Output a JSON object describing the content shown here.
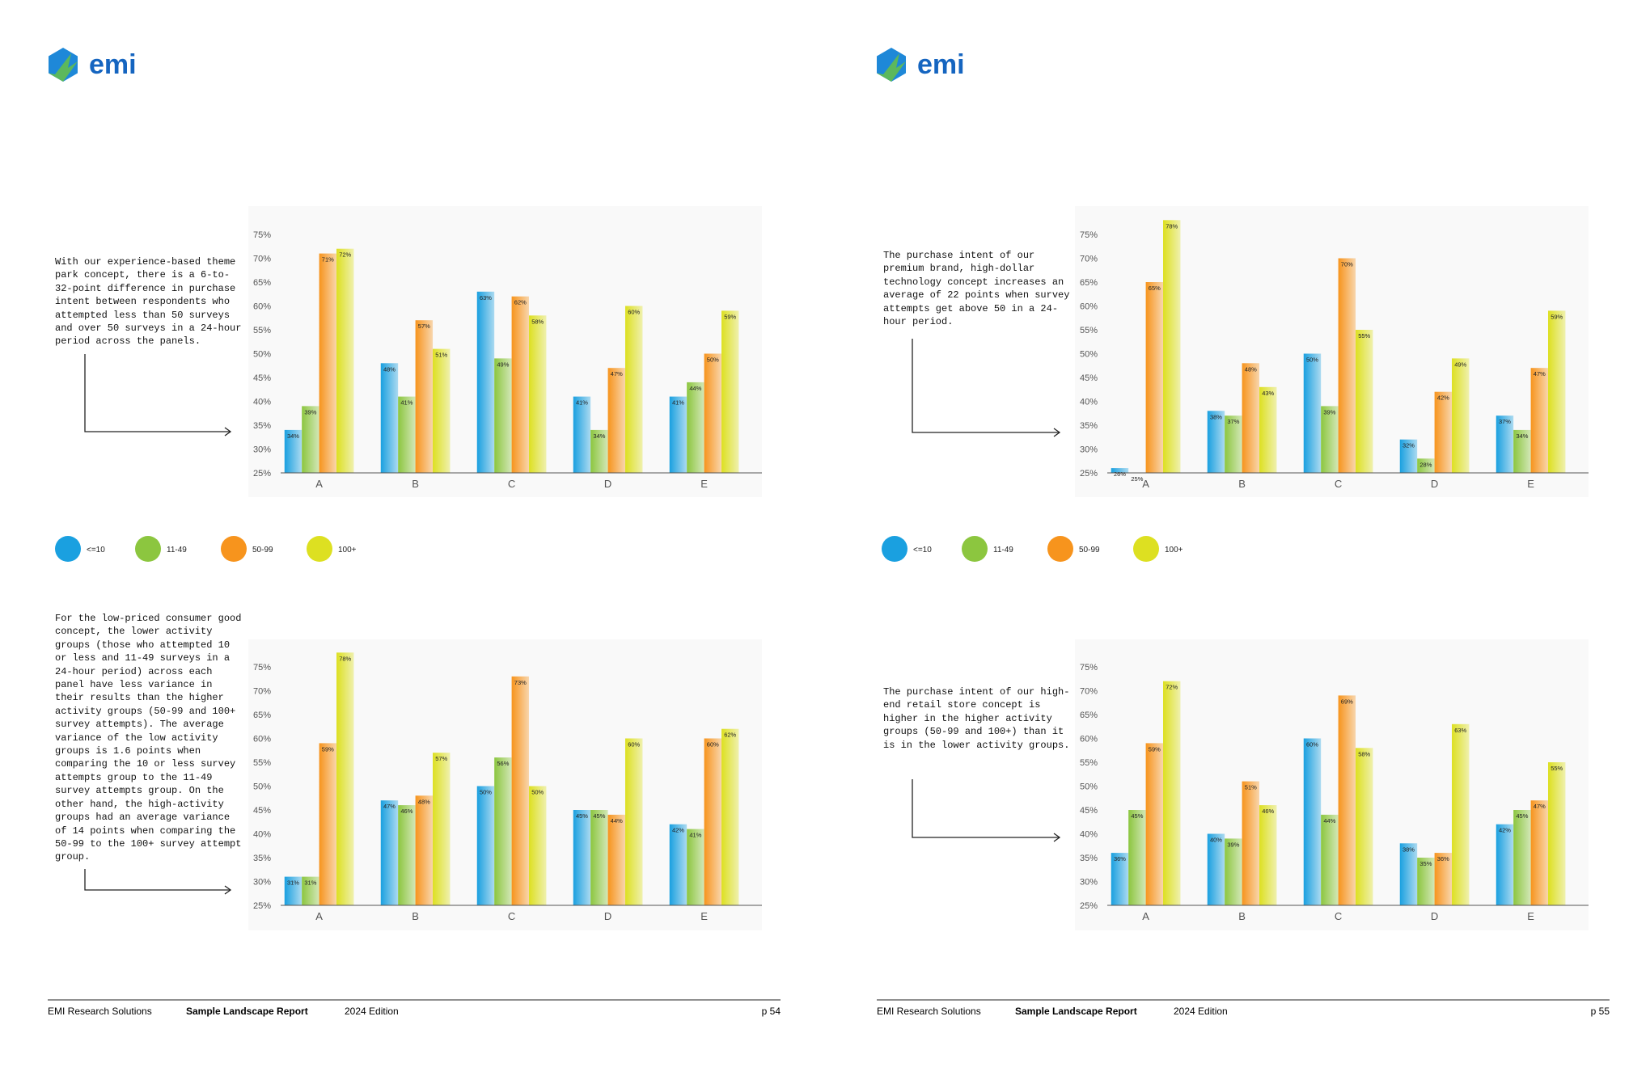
{
  "pages": [
    {
      "logo": "emi",
      "footer": {
        "org": "EMI Research Solutions",
        "report": "Sample Landscape Report",
        "edition": "2024 Edition",
        "page": "p 54"
      }
    },
    {
      "logo": "emi",
      "footer": {
        "org": "EMI Research Solutions",
        "report": "Sample Landscape Report",
        "edition": "2024 Edition",
        "page": "p 55"
      }
    }
  ],
  "chart_data": [
    {
      "type": "bar",
      "description": "With our experience-based theme park concept, there is a 6-to-32-point difference in purchase intent between respondents who attempted less than 50 surveys and over 50 surveys in a 24-hour period across the panels.",
      "categories": [
        "A",
        "B",
        "C",
        "D",
        "E"
      ],
      "series": [
        {
          "name": "<=10",
          "color": "#1aa0e0",
          "values": [
            34,
            48,
            63,
            41,
            41
          ],
          "value_labels": [
            "34%",
            "48%",
            "63%",
            "41%",
            "41%"
          ]
        },
        {
          "name": "11-49",
          "color": "#8cc63f",
          "values": [
            39,
            41,
            49,
            34,
            44
          ],
          "value_labels": [
            "39%",
            "41%",
            "49%",
            "34%",
            "44%"
          ]
        },
        {
          "name": "50-99",
          "color": "#f7941d",
          "values": [
            71,
            57,
            62,
            47,
            50
          ],
          "value_labels": [
            "71%",
            "57%",
            "62%",
            "47%",
            "50%"
          ]
        },
        {
          "name": "100+",
          "color": "#dde021",
          "values": [
            72,
            51,
            58,
            60,
            59
          ],
          "value_labels": [
            "72%",
            "51%",
            "58%",
            "60%",
            "59%"
          ]
        }
      ],
      "ylim": [
        25,
        80
      ],
      "yticks": [
        {
          "value": 25,
          "label": "25%"
        },
        {
          "value": 30,
          "label": "30%"
        },
        {
          "value": 35,
          "label": "35%"
        },
        {
          "value": 40,
          "label": "40%"
        },
        {
          "value": 45,
          "label": "45%"
        },
        {
          "value": 50,
          "label": "50%"
        },
        {
          "value": 55,
          "label": "55%"
        },
        {
          "value": 60,
          "label": "60%"
        },
        {
          "value": 65,
          "label": "65%"
        },
        {
          "value": 70,
          "label": "70%"
        },
        {
          "value": 75,
          "label": "75%"
        }
      ]
    },
    {
      "type": "bar",
      "description": "The purchase intent of our premium brand, high-dollar technology concept increases an average of 22 points when survey attempts get above 50 in a 24-hour period.",
      "categories": [
        "A",
        "B",
        "C",
        "D",
        "E"
      ],
      "series": [
        {
          "name": "<=10",
          "color": "#1aa0e0",
          "values": [
            26,
            38,
            50,
            32,
            37
          ],
          "value_labels": [
            "26%",
            "38%",
            "50%",
            "32%",
            "37%"
          ]
        },
        {
          "name": "11-49",
          "color": "#8cc63f",
          "values": [
            25,
            37,
            39,
            28,
            34
          ],
          "value_labels": [
            "25%",
            "37%",
            "39%",
            "28%",
            "34%"
          ]
        },
        {
          "name": "50-99",
          "color": "#f7941d",
          "values": [
            65,
            48,
            70,
            42,
            47
          ],
          "value_labels": [
            "65%",
            "48%",
            "70%",
            "42%",
            "47%"
          ]
        },
        {
          "name": "100+",
          "color": "#dde021",
          "values": [
            78,
            43,
            55,
            49,
            59
          ],
          "value_labels": [
            "78%",
            "43%",
            "55%",
            "49%",
            "59%"
          ]
        }
      ],
      "ylim": [
        25,
        80
      ],
      "yticks": [
        {
          "value": 25,
          "label": "25%"
        },
        {
          "value": 30,
          "label": "30%"
        },
        {
          "value": 35,
          "label": "35%"
        },
        {
          "value": 40,
          "label": "40%"
        },
        {
          "value": 45,
          "label": "45%"
        },
        {
          "value": 50,
          "label": "50%"
        },
        {
          "value": 55,
          "label": "55%"
        },
        {
          "value": 60,
          "label": "60%"
        },
        {
          "value": 65,
          "label": "65%"
        },
        {
          "value": 70,
          "label": "70%"
        },
        {
          "value": 75,
          "label": "75%"
        }
      ]
    },
    {
      "type": "bar",
      "description": "For the low-priced consumer good concept, the lower activity groups (those who attempted 10 or less and 11-49 surveys in a 24-hour period) across each panel have less variance in their results than the higher activity groups (50-99 and 100+ survey attempts). The average variance of the low activity groups is 1.6 points when comparing the 10 or less survey attempts group to the 11-49 survey attempts group. On the other hand, the high-activity groups had an average variance of 14 points when comparing the 50-99 to the 100+ survey attempt group.",
      "categories": [
        "A",
        "B",
        "C",
        "D",
        "E"
      ],
      "series": [
        {
          "name": "<=10",
          "color": "#1aa0e0",
          "values": [
            31,
            47,
            50,
            45,
            42
          ],
          "value_labels": [
            "31%",
            "47%",
            "50%",
            "45%",
            "42%"
          ]
        },
        {
          "name": "11-49",
          "color": "#8cc63f",
          "values": [
            31,
            46,
            56,
            45,
            41
          ],
          "value_labels": [
            "31%",
            "46%",
            "56%",
            "45%",
            "41%"
          ]
        },
        {
          "name": "50-99",
          "color": "#f7941d",
          "values": [
            59,
            48,
            73,
            44,
            60
          ],
          "value_labels": [
            "59%",
            "48%",
            "73%",
            "44%",
            "60%"
          ]
        },
        {
          "name": "100+",
          "color": "#dde021",
          "values": [
            78,
            57,
            50,
            60,
            62
          ],
          "value_labels": [
            "78%",
            "57%",
            "50%",
            "60%",
            "62%"
          ]
        }
      ],
      "ylim": [
        25,
        80
      ],
      "yticks": [
        {
          "value": 25,
          "label": "25%"
        },
        {
          "value": 30,
          "label": "30%"
        },
        {
          "value": 35,
          "label": "35%"
        },
        {
          "value": 40,
          "label": "40%"
        },
        {
          "value": 45,
          "label": "45%"
        },
        {
          "value": 50,
          "label": "50%"
        },
        {
          "value": 55,
          "label": "55%"
        },
        {
          "value": 60,
          "label": "60%"
        },
        {
          "value": 65,
          "label": "65%"
        },
        {
          "value": 70,
          "label": "70%"
        },
        {
          "value": 75,
          "label": "75%"
        }
      ]
    },
    {
      "type": "bar",
      "description": "The purchase intent of our high-end retail store concept is higher in the higher activity groups (50-99 and 100+) than it is in the lower activity groups.",
      "categories": [
        "A",
        "B",
        "C",
        "D",
        "E"
      ],
      "series": [
        {
          "name": "<=10",
          "color": "#1aa0e0",
          "values": [
            36,
            40,
            60,
            38,
            42
          ],
          "value_labels": [
            "36%",
            "40%",
            "60%",
            "38%",
            "42%"
          ]
        },
        {
          "name": "11-49",
          "color": "#8cc63f",
          "values": [
            45,
            39,
            44,
            35,
            45
          ],
          "value_labels": [
            "45%",
            "39%",
            "44%",
            "35%",
            "45%"
          ]
        },
        {
          "name": "50-99",
          "color": "#f7941d",
          "values": [
            59,
            51,
            69,
            36,
            47
          ],
          "value_labels": [
            "59%",
            "51%",
            "69%",
            "36%",
            "47%"
          ]
        },
        {
          "name": "100+",
          "color": "#dde021",
          "values": [
            72,
            46,
            58,
            63,
            55
          ],
          "value_labels": [
            "72%",
            "46%",
            "58%",
            "63%",
            "55%"
          ]
        }
      ],
      "ylim": [
        25,
        80
      ],
      "yticks": [
        {
          "value": 25,
          "label": "25%"
        },
        {
          "value": 30,
          "label": "30%"
        },
        {
          "value": 35,
          "label": "35%"
        },
        {
          "value": 40,
          "label": "40%"
        },
        {
          "value": 45,
          "label": "45%"
        },
        {
          "value": 50,
          "label": "50%"
        },
        {
          "value": 55,
          "label": "55%"
        },
        {
          "value": 60,
          "label": "60%"
        },
        {
          "value": 65,
          "label": "65%"
        },
        {
          "value": 70,
          "label": "70%"
        },
        {
          "value": 75,
          "label": "75%"
        }
      ]
    }
  ]
}
